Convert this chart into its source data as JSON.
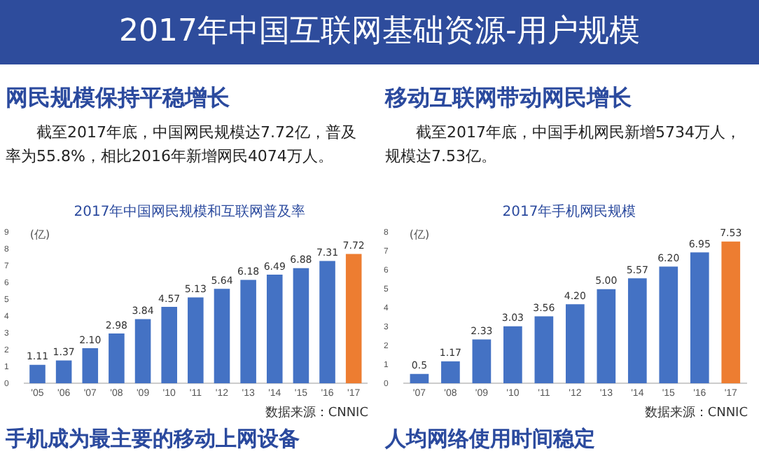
{
  "chart_data": [
    {
      "type": "bar",
      "title": "2017年中国网民规模和互联网普及率",
      "ylabel": "(亿)",
      "categories": [
        "'05",
        "'06",
        "'07",
        "'08",
        "'09",
        "'10",
        "'11",
        "'12",
        "'13",
        "'14",
        "'15",
        "'16",
        "'17"
      ],
      "values": [
        1.11,
        1.37,
        2.1,
        2.98,
        3.84,
        4.57,
        5.13,
        5.64,
        6.18,
        6.49,
        6.88,
        7.31,
        7.72
      ],
      "colors": [
        "#4472c4",
        "#4472c4",
        "#4472c4",
        "#4472c4",
        "#4472c4",
        "#4472c4",
        "#4472c4",
        "#4472c4",
        "#4472c4",
        "#4472c4",
        "#4472c4",
        "#4472c4",
        "#ed7d31"
      ],
      "value_labels": [
        "1.11",
        "1.37",
        "2.10",
        "2.98",
        "3.84",
        "4.57",
        "5.13",
        "5.64",
        "6.18",
        "6.49",
        "6.88",
        "7.31",
        "7.72"
      ],
      "ylim": [
        0,
        9
      ],
      "yticks": [
        0,
        1,
        2,
        3,
        4,
        5,
        6,
        7,
        8,
        9
      ],
      "grid": false,
      "legend": false,
      "annotations": [
        "2017年中国互联网基础资源-用户规模",
        "网民规模保持平稳增长",
        "截至2017年底，中国网民规模达7.72亿，普及率为55.8%，相比2016年新增网民4074万人。",
        "数据来源：CNNIC",
        "手机成为最主要的移动上网设备"
      ]
    },
    {
      "type": "bar",
      "title": "2017年手机网民规模",
      "ylabel": "(亿)",
      "categories": [
        "'07",
        "'08",
        "'09",
        "'10",
        "'11",
        "'12",
        "'13",
        "'14",
        "'15",
        "'16",
        "'17"
      ],
      "values": [
        0.5,
        1.17,
        2.33,
        3.03,
        3.56,
        4.2,
        5.0,
        5.57,
        6.2,
        6.95,
        7.53
      ],
      "colors": [
        "#4472c4",
        "#4472c4",
        "#4472c4",
        "#4472c4",
        "#4472c4",
        "#4472c4",
        "#4472c4",
        "#4472c4",
        "#4472c4",
        "#4472c4",
        "#ed7d31"
      ],
      "value_labels": [
        "0.5",
        "1.17",
        "2.33",
        "3.03",
        "3.56",
        "4.20",
        "5.00",
        "5.57",
        "6.20",
        "6.95",
        "7.53"
      ],
      "ylim": [
        0,
        8
      ],
      "yticks": [
        0,
        1,
        2,
        3,
        4,
        5,
        6,
        7,
        8
      ],
      "grid": false,
      "legend": false,
      "annotations": [
        "移动互联网带动网民增长",
        "截至2017年底，中国手机网民新增5734万人，规模达7.53亿。",
        "数据来源：CNNIC",
        "人均网络使用时间稳定"
      ]
    }
  ]
}
